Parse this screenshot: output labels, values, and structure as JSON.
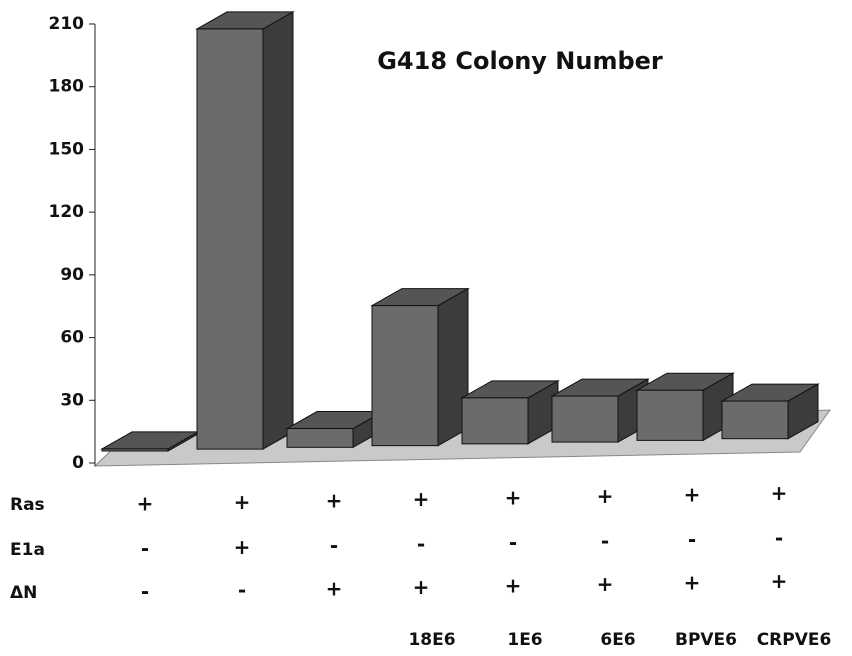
{
  "chart_data": {
    "type": "bar3d",
    "title": "G418 Colony Number",
    "categories": [
      null,
      null,
      null,
      "18E6",
      "1E6",
      "6E6",
      "BPVE6",
      "CRPVE6"
    ],
    "values": [
      1,
      201,
      9,
      67,
      22,
      22,
      24,
      18
    ],
    "color": "#6b6b6b",
    "ylim": [
      0,
      210
    ],
    "yticks": [
      0,
      30,
      60,
      90,
      120,
      150,
      180,
      210
    ],
    "rows": [
      {
        "name": "Ras",
        "values": [
          "+",
          "+",
          "+",
          "+",
          "+",
          "+",
          "+",
          "+"
        ]
      },
      {
        "name": "E1a",
        "values": [
          "-",
          "+",
          "-",
          "-",
          "-",
          "-",
          "-",
          "-"
        ]
      },
      {
        "name": "ΔN",
        "values": [
          "-",
          "-",
          "+",
          "+",
          "+",
          "+",
          "+",
          "+"
        ]
      }
    ]
  }
}
